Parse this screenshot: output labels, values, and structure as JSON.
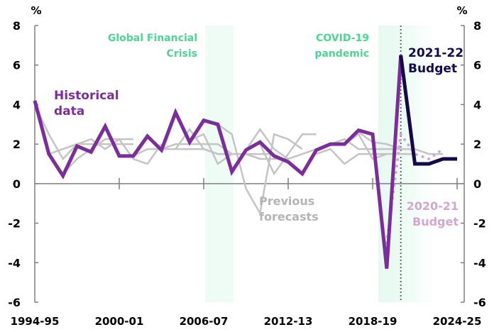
{
  "chart_data": {
    "type": "line",
    "ylabel_left": "%",
    "ylabel_right": "%",
    "ylim": [
      -6,
      8
    ],
    "yticks": [
      8,
      6,
      4,
      2,
      0,
      -2,
      -4,
      -6
    ],
    "x_start_year": "1994-95",
    "xtick_labels": [
      "1994-95",
      "2000-01",
      "2006-07",
      "2012-13",
      "2018-19",
      "2024-25"
    ],
    "xtick_index": [
      0,
      6,
      12,
      18,
      24,
      30
    ],
    "colors": {
      "historical": "#7B2D9C",
      "budget_2021": "#120A4A",
      "budget_2020": "#D5A6CF",
      "previous": "#C4C4C4",
      "shade": "#4CD693",
      "shade_label": "#4CD693"
    },
    "annotations": {
      "gfc": "Global Financial Crisis",
      "covid": "COVID-19 pandemic",
      "historical": "Historical data",
      "budget_2021": "2021-22 Budget",
      "budget_2020": "2020-21 Budget",
      "previous": "Previous forecasts"
    },
    "shaded_periods": [
      {
        "name": "Global Financial Crisis",
        "from": 12.1,
        "to": 14.1
      },
      {
        "name": "COVID-19 pandemic",
        "from": 24.4,
        "to": 28.5
      }
    ],
    "series": [
      {
        "name": "Historical data",
        "start": 0,
        "values": [
          4.2,
          1.5,
          0.4,
          1.9,
          1.6,
          2.9,
          1.4,
          1.4,
          2.4,
          1.7,
          3.6,
          2.1,
          3.2,
          3.0,
          0.6,
          1.7,
          2.1,
          1.4,
          1.1,
          0.5,
          1.7,
          2.0,
          2.0,
          2.7,
          2.5,
          -4.3,
          6.5
        ]
      },
      {
        "name": "2021-22 Budget",
        "start": 26,
        "values": [
          6.5,
          1.0,
          1.0,
          1.25,
          1.25
        ]
      },
      {
        "name": "2020-21 Budget",
        "start": 25,
        "values": [
          -3.0,
          2.5,
          1.5,
          1.25,
          1.75
        ]
      },
      {
        "name": "Previous forecasts",
        "forecasts": [
          {
            "start": 0,
            "values": [
              4.0,
              2.5,
              1.25,
              2.0,
              2.25,
              1.75,
              2.25,
              2.25
            ]
          },
          {
            "start": 1,
            "values": [
              1.5,
              1.75,
              2.0,
              2.0,
              2.0,
              2.0,
              2.0
            ]
          },
          {
            "start": 2,
            "values": [
              0.5,
              1.25,
              1.75,
              2.25,
              2.25,
              1.25,
              1.0,
              2.0
            ]
          },
          {
            "start": 7,
            "values": [
              1.4,
              1.75,
              1.75,
              1.75,
              1.75,
              1.75,
              1.5,
              1.5
            ]
          },
          {
            "start": 9,
            "values": [
              1.75,
              2.0,
              2.0,
              2.0,
              2.0,
              1.5,
              1.5,
              1.25
            ]
          },
          {
            "start": 10,
            "values": [
              1.75,
              2.75,
              1.75,
              1.5,
              1.5,
              1.5,
              1.5,
              1.5
            ]
          },
          {
            "start": 11,
            "values": [
              2.2,
              2.5,
              1.0,
              1.5,
              1.5,
              1.25,
              1.25,
              1.25
            ]
          },
          {
            "start": 13,
            "values": [
              3.0,
              2.5,
              -0.25,
              -1.5,
              2.5,
              2.25,
              1.75
            ]
          },
          {
            "start": 15,
            "values": [
              1.7,
              2.75,
              1.75,
              1.25,
              1.5,
              1.75
            ]
          },
          {
            "start": 16,
            "values": [
              2.0,
              0.5,
              1.5,
              2.5,
              2.5
            ]
          },
          {
            "start": 20,
            "values": [
              1.5,
              1.75,
              1.0,
              1.5,
              1.5,
              1.5
            ]
          },
          {
            "start": 21,
            "values": [
              2.0,
              2.25,
              1.75,
              1.75,
              1.75,
              1.75
            ]
          },
          {
            "start": 22,
            "values": [
              2.0,
              2.5,
              1.25,
              1.5,
              1.5,
              1.5
            ]
          },
          {
            "start": 23,
            "values": [
              2.6,
              2.1,
              2.0,
              1.75,
              1.75,
              1.5,
              1.5
            ]
          }
        ]
      }
    ]
  }
}
